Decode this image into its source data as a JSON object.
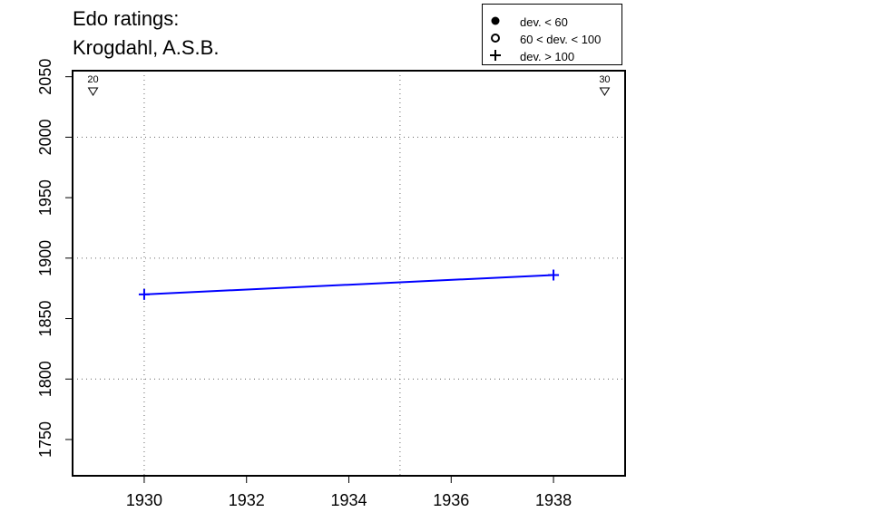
{
  "title_line1": "Edo ratings:",
  "title_line2": "Krogdahl, A.S.B.",
  "legend": {
    "placement": "top-right",
    "items": [
      {
        "label": "dev. < 60",
        "symbol": "filled-circle-icon"
      },
      {
        "label": "60 < dev. < 100",
        "symbol": "open-circle-icon"
      },
      {
        "label": "dev. > 100",
        "symbol": "plus-icon"
      }
    ]
  },
  "chart_data": {
    "type": "line",
    "xlim": [
      1928.6,
      1939.4
    ],
    "ylim": [
      1720,
      2055
    ],
    "x_ticks": [
      1930,
      1932,
      1934,
      1936,
      1938
    ],
    "x_tick_labels": [
      "1930",
      "1932",
      "1934",
      "1936",
      "1938"
    ],
    "y_ticks": [
      1750,
      1800,
      1850,
      1900,
      1950,
      2000,
      2050
    ],
    "y_tick_labels": [
      "1750",
      "1800",
      "1850",
      "1900",
      "1950",
      "2000",
      "2050"
    ],
    "grid_x": [
      1930,
      1935
    ],
    "grid_y": [
      1800,
      1900,
      2000
    ],
    "grid": true,
    "series": [
      {
        "values": [
          {
            "x": 1930,
            "y": 1870,
            "marker": "plus"
          },
          {
            "x": 1938,
            "y": 1886,
            "marker": "plus"
          }
        ],
        "color": "#0000ff"
      }
    ],
    "annotations": [
      {
        "x": 1929,
        "label": "20",
        "marker": "open-triangle-down"
      },
      {
        "x": 1939,
        "label": "30",
        "marker": "open-triangle-down"
      }
    ]
  }
}
